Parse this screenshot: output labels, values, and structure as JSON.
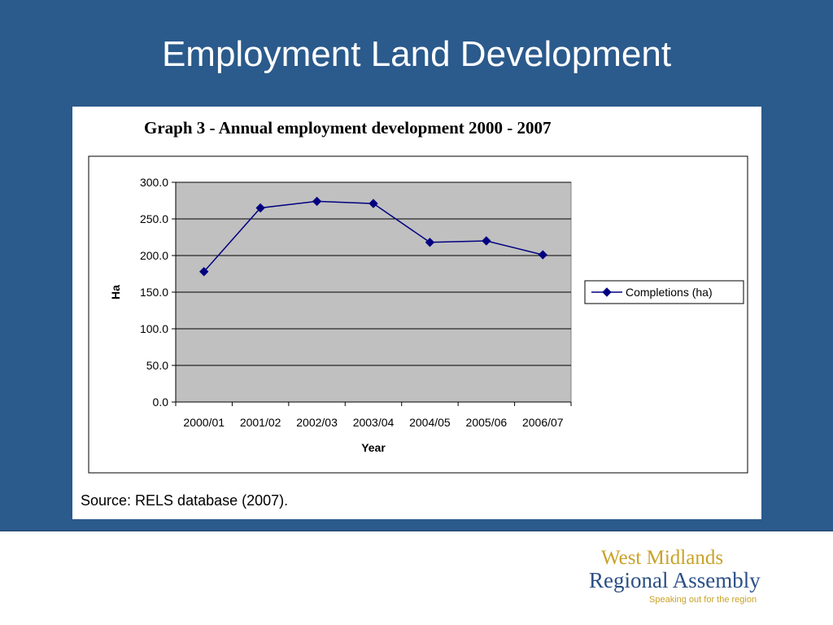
{
  "slide": {
    "title": "Employment Land Development",
    "background_color": "#2b5a8c"
  },
  "figure": {
    "graph_title": "Graph 3 - Annual employment development 2000 - 2007",
    "source": "Source: RELS database (2007)."
  },
  "logo": {
    "line1": "West Midlands",
    "line2": "Regional Assembly",
    "tagline": "Speaking out for the region",
    "gold_color": "#c9a227",
    "blue_color": "#2b4f86"
  },
  "chart_data": {
    "type": "line",
    "title": "Graph 3 - Annual employment development 2000 - 2007",
    "categories": [
      "2000/01",
      "2001/02",
      "2002/03",
      "2003/04",
      "2004/05",
      "2005/06",
      "2006/07"
    ],
    "series": [
      {
        "name": "Completions (ha)",
        "values": [
          178,
          265,
          274,
          271,
          218,
          220,
          201
        ],
        "color": "#000080",
        "marker": "diamond"
      }
    ],
    "xlabel": "Year",
    "ylabel": "Ha",
    "ylim": [
      0,
      300
    ],
    "yticks": [
      "0.0",
      "50.0",
      "100.0",
      "150.0",
      "200.0",
      "250.0",
      "300.0"
    ],
    "grid": true,
    "plot_background": "#c0c0c0",
    "legend": "right"
  }
}
